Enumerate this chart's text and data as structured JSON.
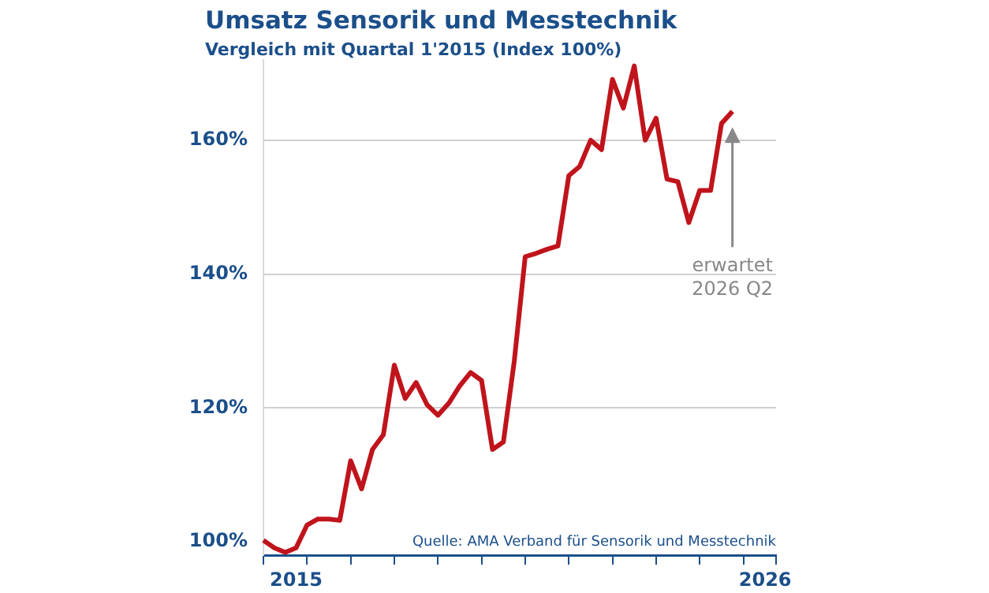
{
  "chart_data": {
    "type": "line",
    "title": "Umsatz Sensorik und Messtechnik",
    "subtitle": "Vergleich mit Quartal 1'2015 (Index 100%)",
    "categories": [
      null,
      null,
      null,
      "2015",
      null,
      null,
      null,
      null,
      null,
      null,
      null,
      null,
      null,
      null,
      null,
      null,
      null,
      null,
      null,
      null,
      null,
      null,
      null,
      null,
      null,
      null,
      null,
      null,
      null,
      null,
      null,
      null,
      null,
      null,
      null,
      null,
      null,
      null,
      null,
      null,
      null,
      null,
      null,
      null,
      null,
      null,
      "2026",
      null
    ],
    "values": [
      100.2,
      99.1,
      98.4,
      99.1,
      102.5,
      103.4,
      103.4,
      103.2,
      112.1,
      107.9,
      113.8,
      116.0,
      126.4,
      121.4,
      123.8,
      120.5,
      118.9,
      120.7,
      123.3,
      125.3,
      124.1,
      113.8,
      114.9,
      127,
      142.6,
      143.1,
      143.7,
      144.2,
      154.7,
      156.1,
      160.0,
      158.6,
      169.1,
      164.8,
      171.1,
      160.0,
      163.3,
      154.2,
      153.8,
      147.7,
      152.5,
      152.5,
      162.5,
      164.3,
      null,
      null,
      null,
      null
    ],
    "color": "#c0141c",
    "marker": "none",
    "ylim": [
      98,
      172
    ],
    "yticks": [
      {
        "value": 100,
        "label": "100%"
      },
      {
        "value": 120,
        "label": "120%"
      },
      {
        "value": 140,
        "label": "140%"
      },
      {
        "value": 160,
        "label": "160%"
      }
    ],
    "grid": "y",
    "annotations": [
      "erwartet\n2026 Q2",
      "Quelle: AMA Verband für Sensorik und Messtechnik"
    ]
  }
}
